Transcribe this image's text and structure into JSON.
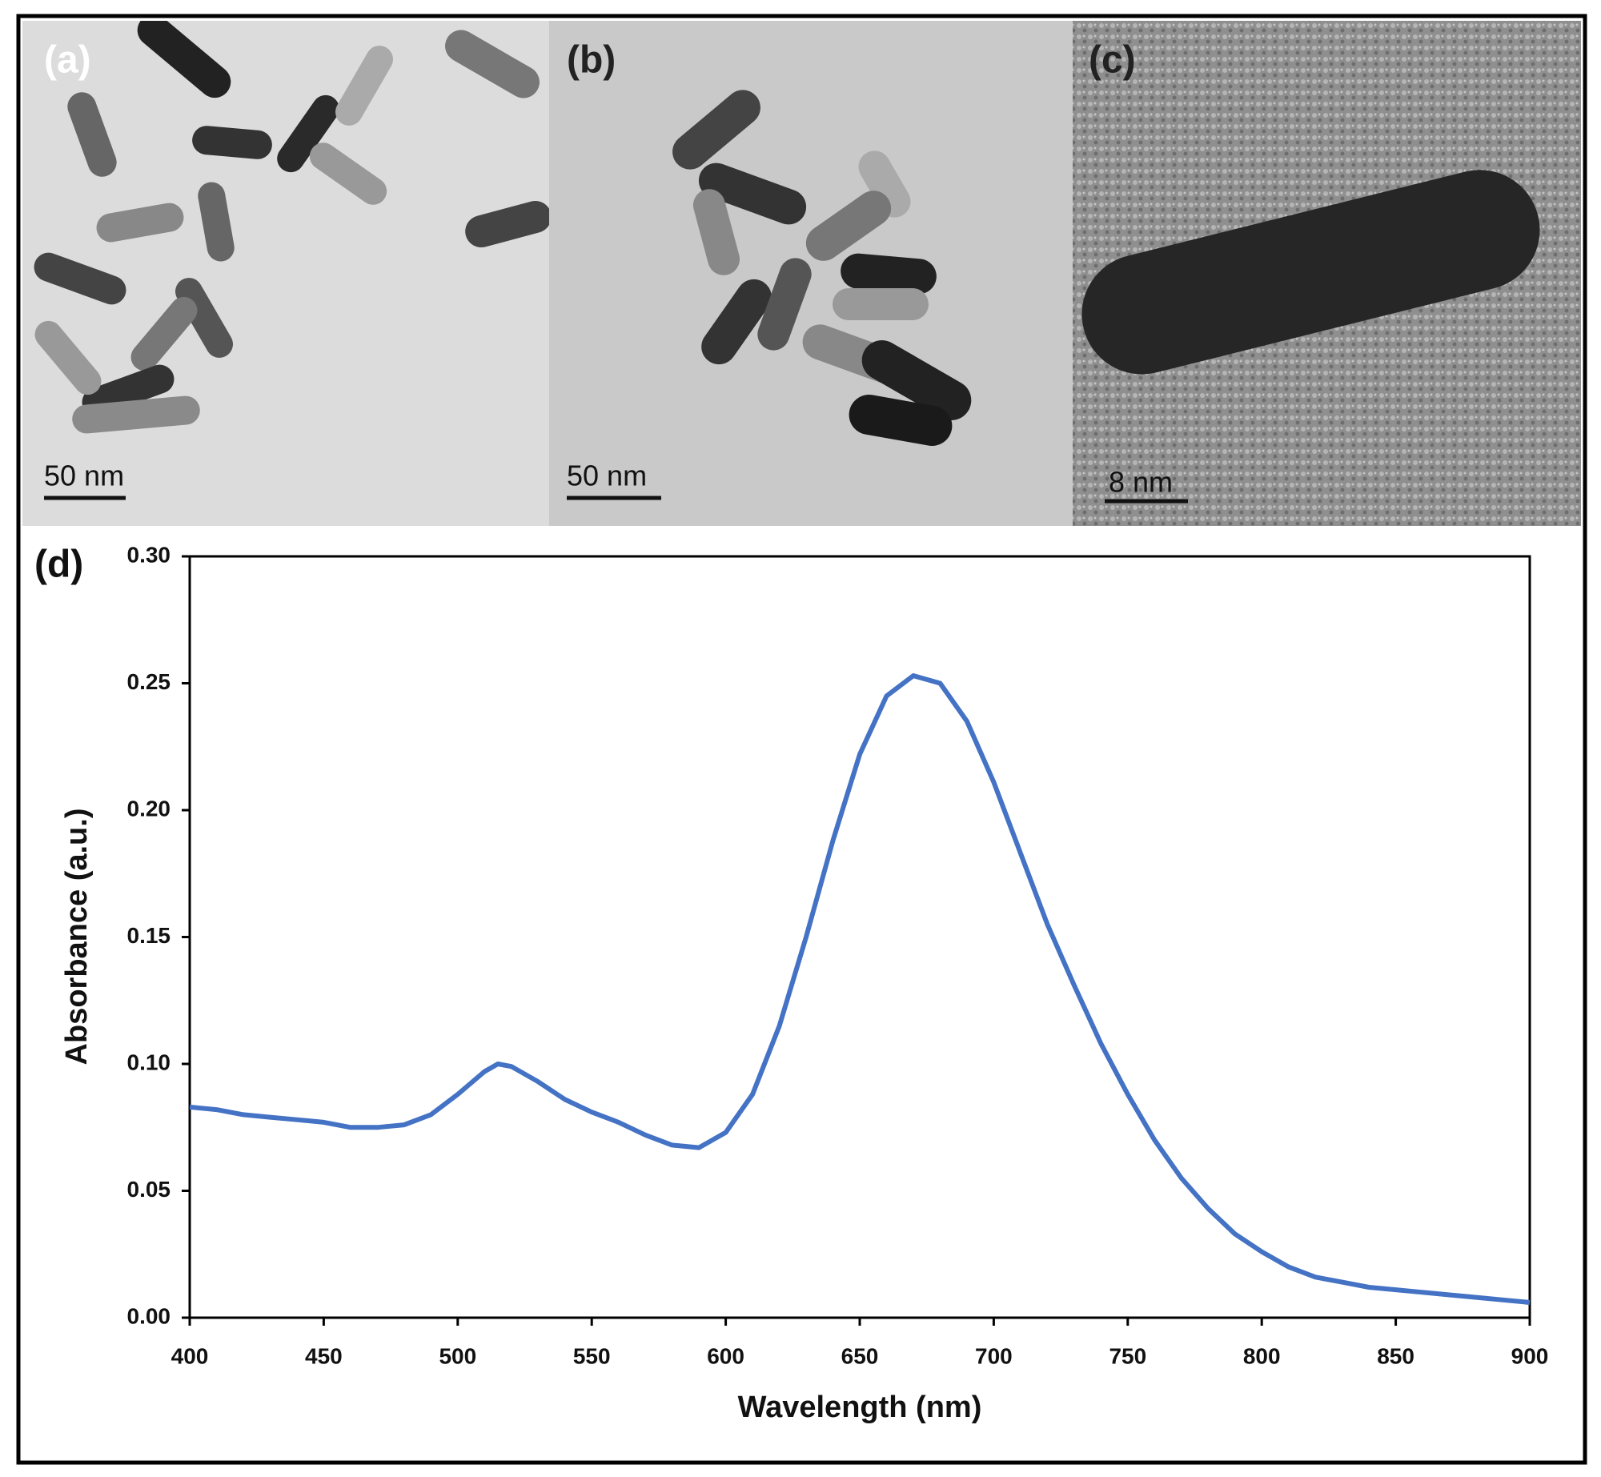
{
  "panels": [
    {
      "label": "(a)",
      "scale_bar": "50 nm"
    },
    {
      "label": "(b)",
      "scale_bar": "50 nm"
    },
    {
      "label": "(c)",
      "scale_bar": "8 nm"
    }
  ],
  "chart_data": {
    "type": "line",
    "panel_label": "(d)",
    "x_label": "Wavelength (nm)",
    "y_label": "Absorbance (a.u.)",
    "color": "#4472c4",
    "x": [
      400,
      410,
      420,
      430,
      440,
      450,
      460,
      470,
      480,
      490,
      500,
      510,
      515,
      520,
      530,
      540,
      550,
      560,
      570,
      580,
      590,
      600,
      610,
      620,
      630,
      640,
      650,
      660,
      670,
      680,
      690,
      700,
      710,
      720,
      730,
      740,
      750,
      760,
      770,
      780,
      790,
      800,
      810,
      820,
      830,
      840,
      850,
      860,
      870,
      880,
      890,
      900
    ],
    "values": [
      0.083,
      0.082,
      0.08,
      0.079,
      0.078,
      0.077,
      0.075,
      0.075,
      0.076,
      0.08,
      0.088,
      0.097,
      0.1,
      0.099,
      0.093,
      0.086,
      0.081,
      0.077,
      0.072,
      0.068,
      0.067,
      0.073,
      0.088,
      0.115,
      0.15,
      0.188,
      0.222,
      0.245,
      0.253,
      0.25,
      0.235,
      0.211,
      0.183,
      0.155,
      0.131,
      0.108,
      0.088,
      0.07,
      0.055,
      0.043,
      0.033,
      0.026,
      0.02,
      0.016,
      0.014,
      0.012,
      0.011,
      0.01,
      0.009,
      0.008,
      0.007,
      0.006
    ],
    "xlim": [
      400,
      900
    ],
    "xticks": [
      400,
      450,
      500,
      550,
      600,
      650,
      700,
      750,
      800,
      850,
      900
    ],
    "ylim": [
      0,
      0.3
    ],
    "yticks": [
      {
        "value": 0,
        "label": "0.00"
      },
      {
        "value": 0.05,
        "label": "0.05"
      },
      {
        "value": 0.1,
        "label": "0.10"
      },
      {
        "value": 0.15,
        "label": "0.15"
      },
      {
        "value": 0.2,
        "label": "0.20"
      },
      {
        "value": 0.25,
        "label": "0.25"
      },
      {
        "value": 0.3,
        "label": "0.30"
      }
    ],
    "grid": false
  }
}
